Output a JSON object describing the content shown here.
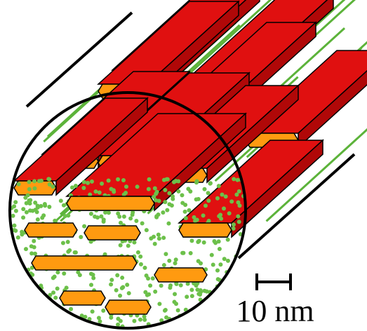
{
  "scale_bar": {
    "label": "10 nm"
  }
}
